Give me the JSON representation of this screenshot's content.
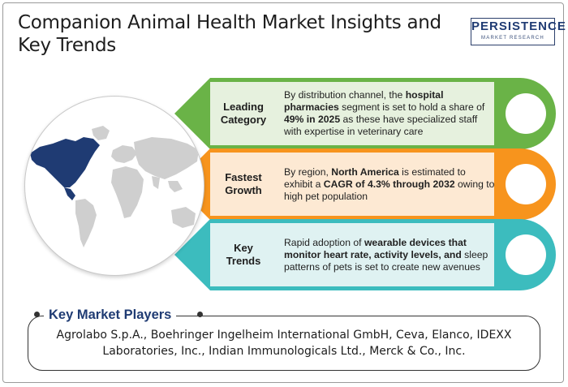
{
  "title": "Companion Animal Health Market Insights and Key Trends",
  "logo": {
    "main": "PERSISTENCE",
    "sub": "MARKET RESEARCH"
  },
  "colors": {
    "green": "#6ab347",
    "green_light": "#e6f1de",
    "orange": "#f7941d",
    "orange_light": "#fde9d3",
    "teal": "#3cbcbe",
    "teal_light": "#dff2f2",
    "navy": "#1f3b73",
    "map_land": "#d0d0d0",
    "map_highlight": "#1f3b73"
  },
  "rows": [
    {
      "label": "Leading Category",
      "segments": [
        {
          "text": "By distribution channel, the ",
          "bold": false
        },
        {
          "text": "hospital pharmacies",
          "bold": true
        },
        {
          "text": " segment is set to hold a share of ",
          "bold": false
        },
        {
          "text": "49% in 2025",
          "bold": true
        },
        {
          "text": " as these have specialized staff with expertise in veterinary care",
          "bold": false
        }
      ]
    },
    {
      "label": "Fastest Growth",
      "segments": [
        {
          "text": "By region, ",
          "bold": false
        },
        {
          "text": "North America",
          "bold": true
        },
        {
          "text": " is estimated to exhibit a ",
          "bold": false
        },
        {
          "text": "CAGR of 4.3%  through 2032",
          "bold": true
        },
        {
          "text": " owing to high pet population",
          "bold": false
        }
      ]
    },
    {
      "label": "Key Trends",
      "segments": [
        {
          "text": "Rapid adoption of ",
          "bold": false
        },
        {
          "text": "wearable devices that monitor heart rate, activity levels, and",
          "bold": true
        },
        {
          "text": " sleep patterns of pets is set to create new avenues",
          "bold": false
        }
      ]
    }
  ],
  "players": {
    "title": "Key Market Players",
    "text": "Agrolabo S.p.A., Boehringer Ingelheim International GmbH, Ceva, Elanco, IDEXX Laboratories, Inc., Indian Immunologicals Ltd., Merck & Co., Inc."
  }
}
